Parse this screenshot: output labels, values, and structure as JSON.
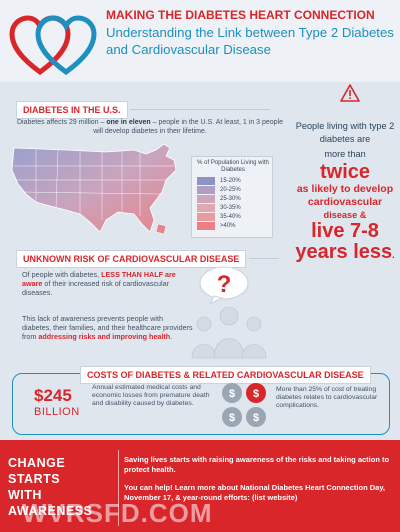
{
  "header": {
    "title": "MAKING THE DIABETES HEART CONNECTION",
    "subtitle": "Understanding the Link between Type 2 Diabetes and Cardiovascular Disease"
  },
  "us_section": {
    "label": "DIABETES IN THE U.S.",
    "text_before": "Diabetes affects 29 million – ",
    "text_bold": "one in eleven",
    "text_after": " – people in the U.S. At least, 1 in 3 people will develop diabetes in their lifetime."
  },
  "legend": {
    "title": "% of Population Living with Diabetes",
    "items": [
      {
        "label": "15-20%",
        "color": "#8e93c5"
      },
      {
        "label": "20-25%",
        "color": "#b19ec4"
      },
      {
        "label": "25-30%",
        "color": "#cfa6b9"
      },
      {
        "label": "30-35%",
        "color": "#e0a9ae"
      },
      {
        "label": "35-40%",
        "color": "#e99aa0"
      },
      {
        "label": ">40%",
        "color": "#ee7e86"
      }
    ]
  },
  "right_col": {
    "line1": "People living with type 2 diabetes are",
    "line2": "more than",
    "big1": "twice",
    "red1": "as likely to develop cardiovascular",
    "red2": "disease &",
    "big2": "live 7-8 years less",
    "period": "."
  },
  "risk_section": {
    "label": "UNKNOWN RISK OF CARDIOVASCULAR DISEASE",
    "p1_before": "Of people with diabetes, ",
    "p1_bold": "LESS THAN HALF are aware",
    "p1_after": " of their increased risk of cardiovascular diseases.",
    "p2_before": "This lack of awareness prevents people with diabetes, their families, and their healthcare providers from ",
    "p2_bold": "addressing risks and improving health",
    "p2_after": ".",
    "question_mark": "?"
  },
  "costs_section": {
    "label": "COSTS OF DIABETES & RELATED CARDIOVASCULAR DISEASE",
    "amount": "$245",
    "unit": "BILLION",
    "text": "Annual estimated medical costs and economic losses from premature death and disability caused by diabetes.",
    "text2": "More than 25% of cost of treating diabetes relates to cardiovascular complications.",
    "coin_symbol": "$"
  },
  "banner": {
    "heading_lines": [
      "CHANGE",
      "STARTS",
      "WITH",
      "AWARENESS"
    ],
    "p1": "Saving lives starts with raising awareness of the risks and taking action to protect health.",
    "p2": "You can help! Learn more about National Diabetes Heart Connection Day, November 17, & year-round efforts: (list website)",
    "watermark": "WVRSFD.COM"
  },
  "colors": {
    "accent_red": "#d8262b",
    "accent_blue": "#1f8fbf",
    "background": "#dfe6ee"
  },
  "icons": [
    "heart-logo-icon",
    "warning-icon",
    "us-map-icon",
    "speech-bubble-icon",
    "people-icon",
    "coins-icon"
  ]
}
